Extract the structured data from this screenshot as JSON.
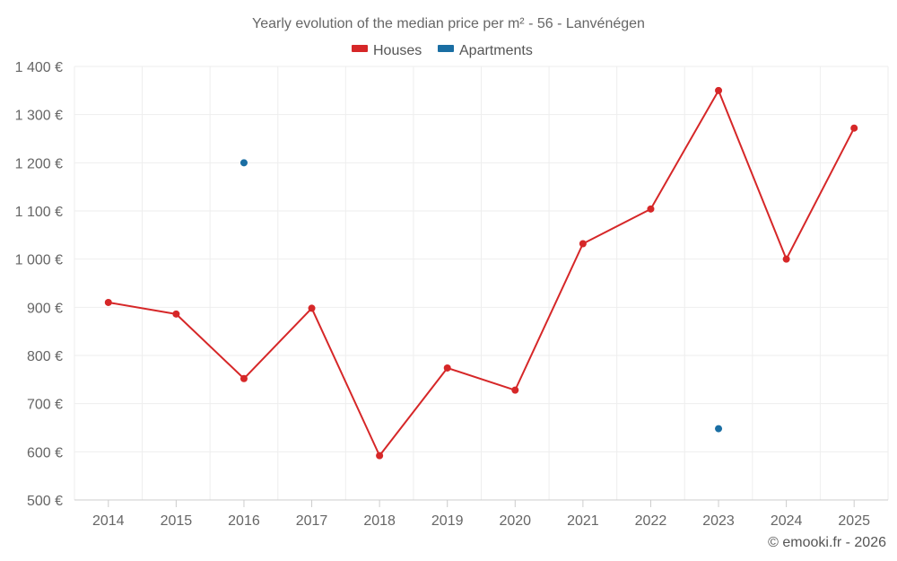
{
  "chart_data": {
    "type": "line",
    "title": "Yearly evolution of the median price per m² - 56 - Lanvénégen",
    "categories": [
      "2014",
      "2015",
      "2016",
      "2017",
      "2018",
      "2019",
      "2020",
      "2021",
      "2022",
      "2023",
      "2024",
      "2025"
    ],
    "y_ticks": [
      "500 €",
      "600 €",
      "700 €",
      "800 €",
      "900 €",
      "1 000 €",
      "1 100 €",
      "1 200 €",
      "1 300 €",
      "1 400 €"
    ],
    "ylim": [
      500,
      1400
    ],
    "grid": true,
    "legend_position": "top-center",
    "series": [
      {
        "name": "Houses",
        "color": "#d62728",
        "values": [
          910,
          886,
          752,
          898,
          592,
          774,
          728,
          1032,
          1104,
          1350,
          1000,
          1272
        ]
      },
      {
        "name": "Apartments",
        "color": "#1a6ea3",
        "values": [
          null,
          null,
          1200,
          null,
          null,
          null,
          null,
          null,
          null,
          648,
          null,
          null
        ]
      }
    ]
  },
  "credit": "© emooki.fr - 2026"
}
